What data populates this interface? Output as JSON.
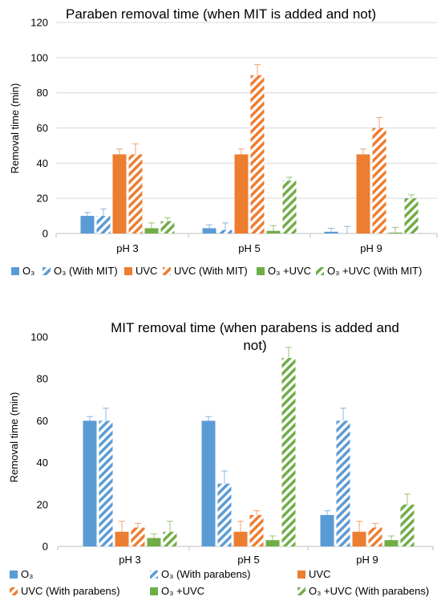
{
  "colors": {
    "O3": "#5b9bd5",
    "UVC": "#ed7d31",
    "O3_UVC": "#70ad47",
    "grid": "#d9d9d9",
    "axis": "#bfbfbf",
    "error_bar": "#bfbfbf"
  },
  "chart_data": [
    {
      "type": "bar",
      "title": "Paraben removal time (when MIT is added and not)",
      "ylabel": "Removal time (min)",
      "xlabel": "",
      "ylim": [
        0,
        120
      ],
      "yticks": [
        0,
        20,
        40,
        60,
        80,
        100,
        120
      ],
      "categories": [
        "pH 3",
        "pH 5",
        "pH 9"
      ],
      "grid": true,
      "legend_position": "bottom",
      "series": [
        {
          "name": "O₃",
          "key": "O3",
          "hatched": false,
          "values": [
            10,
            3,
            1
          ],
          "errors": [
            2,
            2,
            2
          ]
        },
        {
          "name": "O₃  (With MIT)",
          "key": "O3",
          "hatched": true,
          "values": [
            10,
            2,
            0
          ],
          "errors": [
            4,
            4,
            4
          ]
        },
        {
          "name": "UVC",
          "key": "UVC",
          "hatched": false,
          "values": [
            45,
            45,
            45
          ],
          "errors": [
            3,
            3,
            3
          ]
        },
        {
          "name": "UVC (With MIT)",
          "key": "UVC",
          "hatched": true,
          "values": [
            45,
            90,
            60
          ],
          "errors": [
            6,
            6,
            6
          ]
        },
        {
          "name": "O₃ +UVC",
          "key": "O3_UVC",
          "hatched": false,
          "values": [
            3,
            1.5,
            0.5
          ],
          "errors": [
            3,
            3,
            3
          ]
        },
        {
          "name": "O₃ +UVC (With MIT)",
          "key": "O3_UVC",
          "hatched": true,
          "values": [
            7,
            30,
            20
          ],
          "errors": [
            2,
            2,
            2
          ]
        }
      ]
    },
    {
      "type": "bar",
      "title": "MIT removal time (when parabens is added and not)",
      "ylabel": "Removal time (min)",
      "xlabel": "",
      "ylim": [
        0,
        100
      ],
      "yticks": [
        0,
        20,
        40,
        60,
        80,
        100
      ],
      "categories": [
        "pH 3",
        "pH 5",
        "pH 9"
      ],
      "grid": false,
      "legend_position": "bottom",
      "series": [
        {
          "name": "O₃",
          "key": "O3",
          "hatched": false,
          "values": [
            60,
            60,
            15
          ],
          "errors": [
            2,
            2,
            2
          ]
        },
        {
          "name": "O₃  (With parabens)",
          "key": "O3",
          "hatched": true,
          "values": [
            60,
            30,
            60
          ],
          "errors": [
            6,
            6,
            6
          ]
        },
        {
          "name": "UVC",
          "key": "UVC",
          "hatched": false,
          "values": [
            7,
            7,
            7
          ],
          "errors": [
            5,
            5,
            5
          ]
        },
        {
          "name": "UVC (With parabens)",
          "key": "UVC",
          "hatched": true,
          "values": [
            9,
            15,
            9
          ],
          "errors": [
            2,
            2,
            2
          ]
        },
        {
          "name": "O₃ +UVC",
          "key": "O3_UVC",
          "hatched": false,
          "values": [
            4,
            3,
            3
          ],
          "errors": [
            2,
            2,
            2
          ]
        },
        {
          "name": "O₃ +UVC (With parabens)",
          "key": "O3_UVC",
          "hatched": true,
          "values": [
            7,
            90,
            20
          ],
          "errors": [
            5,
            5,
            5
          ]
        }
      ]
    }
  ]
}
